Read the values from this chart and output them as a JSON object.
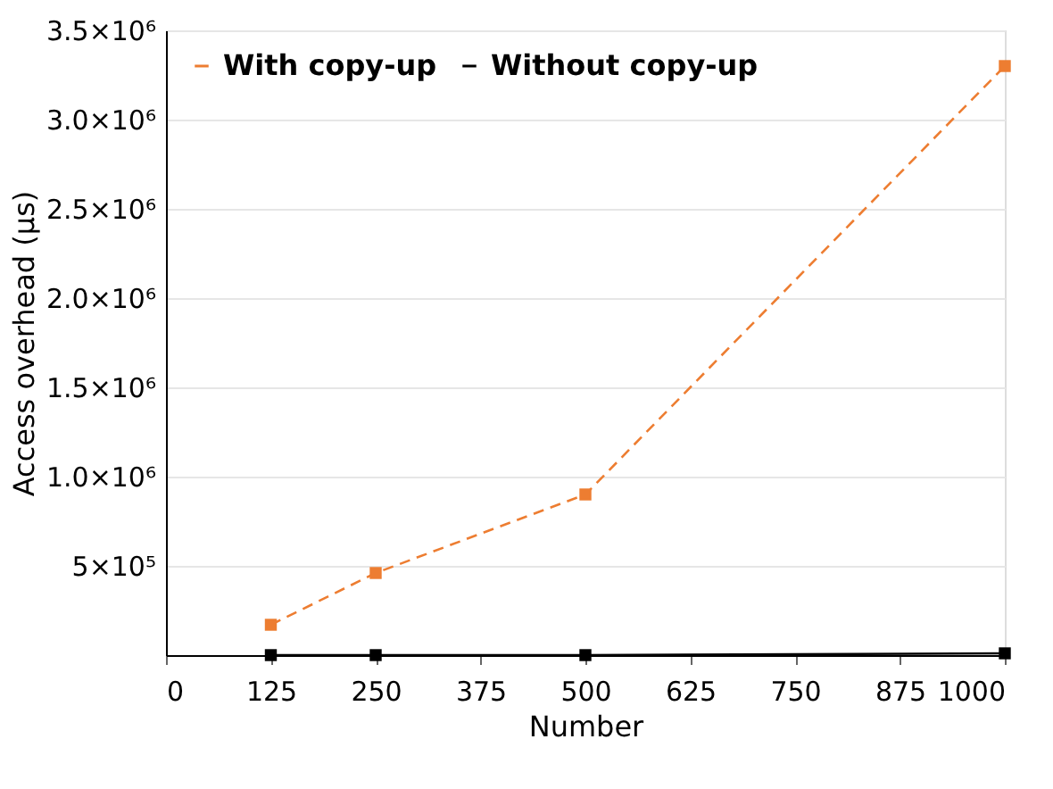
{
  "chart_data": {
    "type": "line",
    "xlabel": "Number",
    "ylabel": "Access overhead  (μs)",
    "x": [
      125,
      250,
      500,
      1000
    ],
    "series": [
      {
        "name": "With copy-up",
        "color": "#ed7d31",
        "line_style": "dashed",
        "values": [
          170000,
          460000,
          900000,
          3300000
        ]
      },
      {
        "name": "Without copy-up",
        "color": "#000000",
        "line_style": "solid",
        "values": [
          0,
          0,
          0,
          10000
        ]
      }
    ],
    "xlim": [
      0,
      1000
    ],
    "xticks": [
      0,
      125,
      250,
      375,
      500,
      625,
      750,
      875,
      1000
    ],
    "ylim": [
      0,
      3500000
    ],
    "yticks": [
      {
        "value": 500000,
        "label": "5×10⁵"
      },
      {
        "value": 1000000,
        "label": "1.0×10⁶"
      },
      {
        "value": 1500000,
        "label": "1.5×10⁶"
      },
      {
        "value": 2000000,
        "label": "2.0×10⁶"
      },
      {
        "value": 2500000,
        "label": "2.5×10⁶"
      },
      {
        "value": 3000000,
        "label": "3.0×10⁶"
      },
      {
        "value": 3500000,
        "label": "3.5×10⁶"
      }
    ],
    "grid": "y",
    "legend": "top left",
    "marker": "square"
  }
}
